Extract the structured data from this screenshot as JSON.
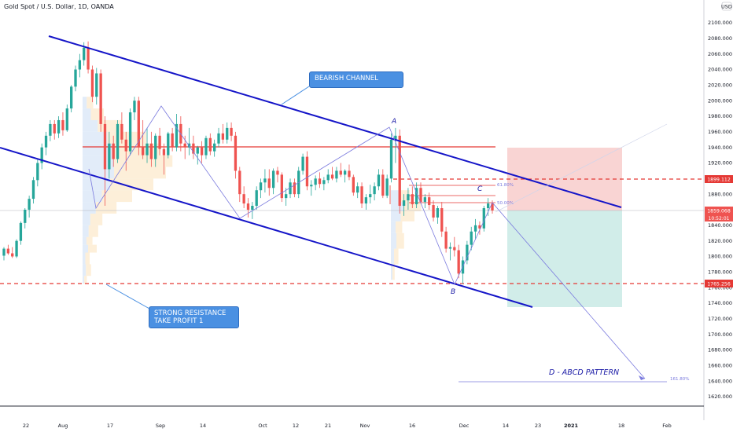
{
  "header": {
    "symbol_title": "Gold Spot / U.S. Dollar, 1D, OANDA",
    "currency": "USD"
  },
  "notes": {
    "bearish_channel": "BEARISH CHANNEL",
    "strong_resistance": "STRONG RESISTANCE",
    "take_profit": "TAKE PROFIT 1",
    "pattern": "D - ABCD PATTERN"
  },
  "points": {
    "a": "A",
    "b": "B",
    "c": "C"
  },
  "fib_labels": {
    "f618": "61.80%",
    "f50": "50.00%",
    "f1618": "161.80%"
  },
  "price_tags": {
    "upper_dashed": "1899.112",
    "current": "1859.068",
    "countdown": "10:52:01",
    "lower_dashed": "1765.256"
  },
  "colors": {
    "channel": "#1515c8",
    "bull": "#26a69a",
    "bear": "#ef5350",
    "red_line": "#e53935",
    "stop_zone": "#f8c9c8",
    "target_zone": "#c6e8e4",
    "label_bg": "#4a90e2",
    "pattern": "#7b7bde"
  },
  "chart_data": {
    "type": "candlestick",
    "title": "Gold Spot / U.S. Dollar, 1D, OANDA",
    "y_unit": "USD",
    "ylim": [
      1610,
      2130
    ],
    "y_ticks": [
      "2100.000",
      "2080.000",
      "2060.000",
      "2040.000",
      "2020.000",
      "2000.000",
      "1980.000",
      "1960.000",
      "1940.000",
      "1920.000",
      "1900.000",
      "1880.000",
      "1860.000",
      "1840.000",
      "1820.000",
      "1800.000",
      "1780.000",
      "1760.000",
      "1740.000",
      "1720.000",
      "1700.000",
      "1680.000",
      "1660.000",
      "1640.000",
      "1620.000"
    ],
    "x_ticks": [
      "22",
      "Aug",
      "17",
      "Sep",
      "14",
      "Oct",
      "12",
      "21",
      "Nov",
      "16",
      "Dec",
      "14",
      "23",
      "2021",
      "18",
      "Feb"
    ],
    "candles": [
      {
        "o": 1801,
        "h": 1812,
        "l": 1795,
        "c": 1810
      },
      {
        "o": 1810,
        "h": 1815,
        "l": 1802,
        "c": 1804
      },
      {
        "o": 1804,
        "h": 1812,
        "l": 1798,
        "c": 1800
      },
      {
        "o": 1800,
        "h": 1822,
        "l": 1798,
        "c": 1820
      },
      {
        "o": 1820,
        "h": 1845,
        "l": 1815,
        "c": 1843
      },
      {
        "o": 1843,
        "h": 1862,
        "l": 1836,
        "c": 1860
      },
      {
        "o": 1860,
        "h": 1878,
        "l": 1850,
        "c": 1874
      },
      {
        "o": 1874,
        "h": 1902,
        "l": 1868,
        "c": 1898
      },
      {
        "o": 1898,
        "h": 1925,
        "l": 1890,
        "c": 1920
      },
      {
        "o": 1920,
        "h": 1945,
        "l": 1912,
        "c": 1940
      },
      {
        "o": 1940,
        "h": 1960,
        "l": 1930,
        "c": 1955
      },
      {
        "o": 1955,
        "h": 1975,
        "l": 1948,
        "c": 1970
      },
      {
        "o": 1970,
        "h": 1975,
        "l": 1950,
        "c": 1958
      },
      {
        "o": 1958,
        "h": 1980,
        "l": 1952,
        "c": 1975
      },
      {
        "o": 1975,
        "h": 1985,
        "l": 1955,
        "c": 1962
      },
      {
        "o": 1962,
        "h": 1995,
        "l": 1960,
        "c": 1990
      },
      {
        "o": 1990,
        "h": 2020,
        "l": 1985,
        "c": 2018
      },
      {
        "o": 2018,
        "h": 2045,
        "l": 2012,
        "c": 2040
      },
      {
        "o": 2040,
        "h": 2060,
        "l": 2030,
        "c": 2052
      },
      {
        "o": 2052,
        "h": 2075,
        "l": 2045,
        "c": 2068
      },
      {
        "o": 2068,
        "h": 2076,
        "l": 2035,
        "c": 2040
      },
      {
        "o": 2040,
        "h": 2045,
        "l": 1998,
        "c": 2005
      },
      {
        "o": 2005,
        "h": 2042,
        "l": 1995,
        "c": 2035
      },
      {
        "o": 2035,
        "h": 2040,
        "l": 1960,
        "c": 1970
      },
      {
        "o": 1970,
        "h": 1980,
        "l": 1865,
        "c": 1912
      },
      {
        "o": 1912,
        "h": 1960,
        "l": 1900,
        "c": 1945
      },
      {
        "o": 1945,
        "h": 1955,
        "l": 1915,
        "c": 1925
      },
      {
        "o": 1925,
        "h": 1975,
        "l": 1920,
        "c": 1970
      },
      {
        "o": 1970,
        "h": 1985,
        "l": 1945,
        "c": 1950
      },
      {
        "o": 1950,
        "h": 1960,
        "l": 1910,
        "c": 1935
      },
      {
        "o": 1935,
        "h": 1990,
        "l": 1930,
        "c": 1985
      },
      {
        "o": 1985,
        "h": 2005,
        "l": 1975,
        "c": 2000
      },
      {
        "o": 2000,
        "h": 2005,
        "l": 1930,
        "c": 1940
      },
      {
        "o": 1940,
        "h": 1975,
        "l": 1925,
        "c": 1930
      },
      {
        "o": 1930,
        "h": 1965,
        "l": 1920,
        "c": 1945
      },
      {
        "o": 1945,
        "h": 1960,
        "l": 1915,
        "c": 1925
      },
      {
        "o": 1925,
        "h": 1958,
        "l": 1915,
        "c": 1955
      },
      {
        "o": 1955,
        "h": 1965,
        "l": 1930,
        "c": 1938
      },
      {
        "o": 1938,
        "h": 1945,
        "l": 1905,
        "c": 1930
      },
      {
        "o": 1930,
        "h": 1960,
        "l": 1926,
        "c": 1958
      },
      {
        "o": 1958,
        "h": 1965,
        "l": 1935,
        "c": 1940
      },
      {
        "o": 1940,
        "h": 1983,
        "l": 1935,
        "c": 1970
      },
      {
        "o": 1970,
        "h": 1980,
        "l": 1935,
        "c": 1945
      },
      {
        "o": 1945,
        "h": 1955,
        "l": 1925,
        "c": 1940
      },
      {
        "o": 1940,
        "h": 1965,
        "l": 1930,
        "c": 1945
      },
      {
        "o": 1945,
        "h": 1955,
        "l": 1925,
        "c": 1932
      },
      {
        "o": 1932,
        "h": 1942,
        "l": 1918,
        "c": 1940
      },
      {
        "o": 1940,
        "h": 1948,
        "l": 1920,
        "c": 1930
      },
      {
        "o": 1930,
        "h": 1955,
        "l": 1925,
        "c": 1952
      },
      {
        "o": 1952,
        "h": 1958,
        "l": 1930,
        "c": 1935
      },
      {
        "o": 1935,
        "h": 1950,
        "l": 1928,
        "c": 1945
      },
      {
        "o": 1945,
        "h": 1965,
        "l": 1940,
        "c": 1958
      },
      {
        "o": 1958,
        "h": 1970,
        "l": 1945,
        "c": 1950
      },
      {
        "o": 1950,
        "h": 1972,
        "l": 1945,
        "c": 1965
      },
      {
        "o": 1965,
        "h": 1972,
        "l": 1948,
        "c": 1955
      },
      {
        "o": 1955,
        "h": 1960,
        "l": 1900,
        "c": 1910
      },
      {
        "o": 1910,
        "h": 1915,
        "l": 1870,
        "c": 1880
      },
      {
        "o": 1880,
        "h": 1890,
        "l": 1862,
        "c": 1868
      },
      {
        "o": 1868,
        "h": 1875,
        "l": 1850,
        "c": 1860
      },
      {
        "o": 1860,
        "h": 1870,
        "l": 1848,
        "c": 1865
      },
      {
        "o": 1865,
        "h": 1890,
        "l": 1860,
        "c": 1885
      },
      {
        "o": 1885,
        "h": 1900,
        "l": 1875,
        "c": 1895
      },
      {
        "o": 1895,
        "h": 1912,
        "l": 1882,
        "c": 1900
      },
      {
        "o": 1900,
        "h": 1912,
        "l": 1878,
        "c": 1888
      },
      {
        "o": 1888,
        "h": 1913,
        "l": 1880,
        "c": 1910
      },
      {
        "o": 1910,
        "h": 1915,
        "l": 1895,
        "c": 1905
      },
      {
        "o": 1905,
        "h": 1908,
        "l": 1870,
        "c": 1875
      },
      {
        "o": 1875,
        "h": 1888,
        "l": 1865,
        "c": 1880
      },
      {
        "o": 1880,
        "h": 1900,
        "l": 1875,
        "c": 1895
      },
      {
        "o": 1895,
        "h": 1900,
        "l": 1876,
        "c": 1880
      },
      {
        "o": 1880,
        "h": 1915,
        "l": 1875,
        "c": 1910
      },
      {
        "o": 1910,
        "h": 1932,
        "l": 1905,
        "c": 1928
      },
      {
        "o": 1928,
        "h": 1935,
        "l": 1885,
        "c": 1890
      },
      {
        "o": 1890,
        "h": 1898,
        "l": 1878,
        "c": 1892
      },
      {
        "o": 1892,
        "h": 1904,
        "l": 1885,
        "c": 1900
      },
      {
        "o": 1900,
        "h": 1908,
        "l": 1888,
        "c": 1893
      },
      {
        "o": 1893,
        "h": 1902,
        "l": 1885,
        "c": 1898
      },
      {
        "o": 1898,
        "h": 1912,
        "l": 1894,
        "c": 1905
      },
      {
        "o": 1905,
        "h": 1915,
        "l": 1898,
        "c": 1900
      },
      {
        "o": 1900,
        "h": 1915,
        "l": 1895,
        "c": 1910
      },
      {
        "o": 1910,
        "h": 1920,
        "l": 1902,
        "c": 1905
      },
      {
        "o": 1905,
        "h": 1912,
        "l": 1895,
        "c": 1910
      },
      {
        "o": 1910,
        "h": 1918,
        "l": 1898,
        "c": 1902
      },
      {
        "o": 1902,
        "h": 1905,
        "l": 1878,
        "c": 1882
      },
      {
        "o": 1882,
        "h": 1895,
        "l": 1875,
        "c": 1890
      },
      {
        "o": 1890,
        "h": 1895,
        "l": 1862,
        "c": 1868
      },
      {
        "o": 1868,
        "h": 1880,
        "l": 1860,
        "c": 1876
      },
      {
        "o": 1876,
        "h": 1892,
        "l": 1868,
        "c": 1880
      },
      {
        "o": 1880,
        "h": 1895,
        "l": 1872,
        "c": 1890
      },
      {
        "o": 1890,
        "h": 1912,
        "l": 1885,
        "c": 1905
      },
      {
        "o": 1905,
        "h": 1912,
        "l": 1875,
        "c": 1878
      },
      {
        "o": 1878,
        "h": 1905,
        "l": 1875,
        "c": 1900
      },
      {
        "o": 1900,
        "h": 1958,
        "l": 1895,
        "c": 1950
      },
      {
        "o": 1950,
        "h": 1965,
        "l": 1920,
        "c": 1955
      },
      {
        "o": 1955,
        "h": 1963,
        "l": 1855,
        "c": 1865
      },
      {
        "o": 1865,
        "h": 1880,
        "l": 1852,
        "c": 1872
      },
      {
        "o": 1872,
        "h": 1888,
        "l": 1860,
        "c": 1880
      },
      {
        "o": 1880,
        "h": 1890,
        "l": 1862,
        "c": 1867
      },
      {
        "o": 1867,
        "h": 1895,
        "l": 1862,
        "c": 1888
      },
      {
        "o": 1888,
        "h": 1895,
        "l": 1868,
        "c": 1870
      },
      {
        "o": 1870,
        "h": 1880,
        "l": 1862,
        "c": 1876
      },
      {
        "o": 1876,
        "h": 1882,
        "l": 1860,
        "c": 1866
      },
      {
        "o": 1866,
        "h": 1872,
        "l": 1845,
        "c": 1850
      },
      {
        "o": 1850,
        "h": 1865,
        "l": 1842,
        "c": 1862
      },
      {
        "o": 1862,
        "h": 1870,
        "l": 1825,
        "c": 1832
      },
      {
        "o": 1832,
        "h": 1838,
        "l": 1805,
        "c": 1810
      },
      {
        "o": 1810,
        "h": 1818,
        "l": 1795,
        "c": 1812
      },
      {
        "o": 1812,
        "h": 1825,
        "l": 1800,
        "c": 1808
      },
      {
        "o": 1808,
        "h": 1815,
        "l": 1772,
        "c": 1778
      },
      {
        "o": 1778,
        "h": 1800,
        "l": 1765,
        "c": 1795
      },
      {
        "o": 1795,
        "h": 1820,
        "l": 1790,
        "c": 1815
      },
      {
        "o": 1815,
        "h": 1838,
        "l": 1808,
        "c": 1832
      },
      {
        "o": 1832,
        "h": 1848,
        "l": 1822,
        "c": 1840
      },
      {
        "o": 1840,
        "h": 1845,
        "l": 1828,
        "c": 1836
      },
      {
        "o": 1836,
        "h": 1865,
        "l": 1832,
        "c": 1862
      },
      {
        "o": 1862,
        "h": 1875,
        "l": 1852,
        "c": 1868
      },
      {
        "o": 1868,
        "h": 1872,
        "l": 1855,
        "c": 1859
      }
    ],
    "annotations": [
      "BEARISH CHANNEL",
      "STRONG RESISTANCE",
      "TAKE PROFIT 1",
      "A",
      "B",
      "C",
      "D - ABCD PATTERN",
      "61.80%",
      "50.00%",
      "161.80%"
    ]
  }
}
